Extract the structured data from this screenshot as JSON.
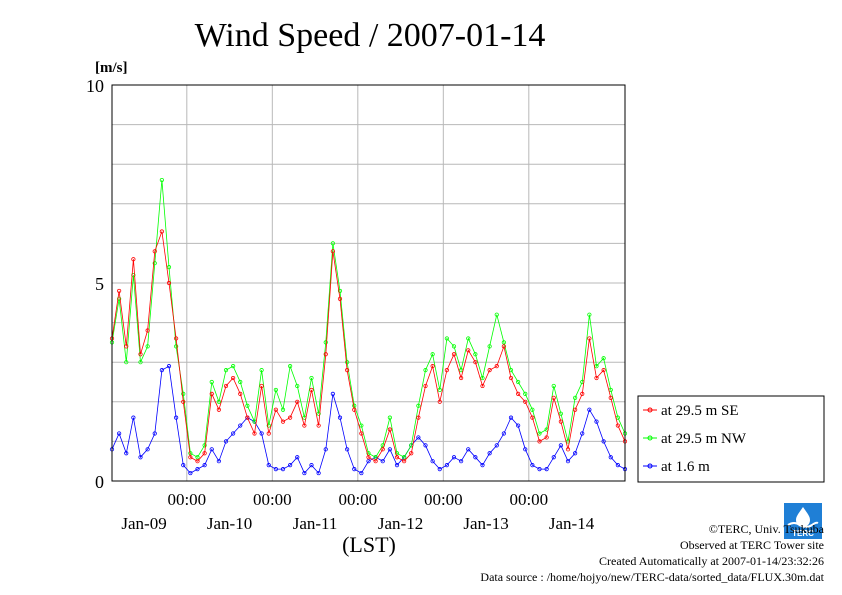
{
  "chart_data": {
    "type": "line",
    "title": "Wind Speed / 2007-01-14",
    "ylabel": "[m/s]",
    "xlabel": "(LST)",
    "ylim": [
      0,
      10
    ],
    "yticks": [
      "0",
      "5",
      "10"
    ],
    "xlim_hours": [
      0,
      144
    ],
    "midnight_labels": [
      "00:00",
      "00:00",
      "00:00",
      "00:00",
      "00:00"
    ],
    "day_labels": [
      "Jan-09",
      "Jan-10",
      "Jan-11",
      "Jan-12",
      "Jan-13",
      "Jan-14"
    ],
    "grid": true,
    "legend_position": "right",
    "series": [
      {
        "name": "at 29.5 m SE",
        "color": "#ff0000",
        "x": [
          0,
          2,
          4,
          6,
          8,
          10,
          12,
          14,
          16,
          18,
          20,
          22,
          24,
          26,
          28,
          30,
          32,
          34,
          36,
          38,
          40,
          42,
          44,
          46,
          48,
          50,
          52,
          54,
          56,
          58,
          60,
          62,
          64,
          66,
          68,
          70,
          72,
          74,
          76,
          78,
          80,
          82,
          84,
          86,
          88,
          90,
          92,
          94,
          96,
          98,
          100,
          102,
          104,
          106,
          108,
          110,
          112,
          114,
          116,
          118,
          120,
          122,
          124,
          126,
          128,
          130,
          132,
          134,
          136,
          138,
          140,
          142,
          144
        ],
        "values": [
          3.6,
          4.8,
          3.4,
          5.6,
          3.2,
          3.8,
          5.8,
          6.3,
          5.0,
          3.6,
          2.0,
          0.6,
          0.5,
          0.7,
          2.2,
          1.8,
          2.4,
          2.6,
          2.2,
          1.6,
          1.2,
          2.4,
          1.2,
          1.8,
          1.5,
          1.6,
          2.0,
          1.4,
          2.3,
          1.4,
          3.2,
          5.8,
          4.6,
          2.8,
          1.8,
          1.2,
          0.6,
          0.5,
          0.8,
          1.3,
          0.6,
          0.5,
          0.7,
          1.6,
          2.4,
          2.9,
          2.0,
          2.8,
          3.2,
          2.6,
          3.3,
          3.0,
          2.4,
          2.8,
          2.9,
          3.4,
          2.6,
          2.2,
          2.0,
          1.6,
          1.0,
          1.1,
          2.1,
          1.5,
          0.8,
          1.8,
          2.2,
          3.6,
          2.6,
          2.8,
          2.1,
          1.4,
          1.0
        ]
      },
      {
        "name": "at 29.5 m NW",
        "color": "#00ff00",
        "x": [
          0,
          2,
          4,
          6,
          8,
          10,
          12,
          14,
          16,
          18,
          20,
          22,
          24,
          26,
          28,
          30,
          32,
          34,
          36,
          38,
          40,
          42,
          44,
          46,
          48,
          50,
          52,
          54,
          56,
          58,
          60,
          62,
          64,
          66,
          68,
          70,
          72,
          74,
          76,
          78,
          80,
          82,
          84,
          86,
          88,
          90,
          92,
          94,
          96,
          98,
          100,
          102,
          104,
          106,
          108,
          110,
          112,
          114,
          116,
          118,
          120,
          122,
          124,
          126,
          128,
          130,
          132,
          134,
          136,
          138,
          140,
          142,
          144
        ],
        "values": [
          3.5,
          4.6,
          3.0,
          5.2,
          3.0,
          3.4,
          5.5,
          7.6,
          5.4,
          3.4,
          2.2,
          0.7,
          0.6,
          0.9,
          2.5,
          2.0,
          2.8,
          2.9,
          2.5,
          1.9,
          1.5,
          2.8,
          1.4,
          2.3,
          1.8,
          2.9,
          2.4,
          1.6,
          2.6,
          1.7,
          3.5,
          6.0,
          4.8,
          3.0,
          1.9,
          1.4,
          0.7,
          0.6,
          0.9,
          1.6,
          0.7,
          0.6,
          0.9,
          1.9,
          2.8,
          3.2,
          2.3,
          3.6,
          3.4,
          2.8,
          3.6,
          3.2,
          2.6,
          3.4,
          4.2,
          3.5,
          2.8,
          2.5,
          2.2,
          1.8,
          1.2,
          1.3,
          2.4,
          1.7,
          1.0,
          2.1,
          2.5,
          4.2,
          2.9,
          3.1,
          2.3,
          1.6,
          1.2
        ]
      },
      {
        "name": "at 1.6 m",
        "color": "#0000ff",
        "x": [
          0,
          2,
          4,
          6,
          8,
          10,
          12,
          14,
          16,
          18,
          20,
          22,
          24,
          26,
          28,
          30,
          32,
          34,
          36,
          38,
          40,
          42,
          44,
          46,
          48,
          50,
          52,
          54,
          56,
          58,
          60,
          62,
          64,
          66,
          68,
          70,
          72,
          74,
          76,
          78,
          80,
          82,
          84,
          86,
          88,
          90,
          92,
          94,
          96,
          98,
          100,
          102,
          104,
          106,
          108,
          110,
          112,
          114,
          116,
          118,
          120,
          122,
          124,
          126,
          128,
          130,
          132,
          134,
          136,
          138,
          140,
          142,
          144
        ],
        "values": [
          0.8,
          1.2,
          0.7,
          1.6,
          0.6,
          0.8,
          1.2,
          2.8,
          2.9,
          1.6,
          0.4,
          0.2,
          0.3,
          0.4,
          0.8,
          0.5,
          1.0,
          1.2,
          1.4,
          1.6,
          1.5,
          1.2,
          0.4,
          0.3,
          0.3,
          0.4,
          0.6,
          0.2,
          0.4,
          0.2,
          0.8,
          2.2,
          1.6,
          0.8,
          0.3,
          0.2,
          0.5,
          0.6,
          0.5,
          0.8,
          0.4,
          0.6,
          0.9,
          1.1,
          0.9,
          0.5,
          0.3,
          0.4,
          0.6,
          0.5,
          0.8,
          0.6,
          0.4,
          0.7,
          0.9,
          1.2,
          1.6,
          1.4,
          0.8,
          0.4,
          0.3,
          0.3,
          0.6,
          0.9,
          0.5,
          0.7,
          1.2,
          1.8,
          1.5,
          1.0,
          0.6,
          0.4,
          0.3
        ]
      }
    ]
  },
  "credits": {
    "copyright": "©TERC, Univ. Tsukuba",
    "observed": "Observed at TERC Tower site",
    "created": "Created Automatically at 2007-01-14/23:32:26",
    "source": "Data source : /home/hojyo/new/TERC-data/sorted_data/FLUX.30m.dat"
  },
  "logo": {
    "label": "TERC"
  }
}
